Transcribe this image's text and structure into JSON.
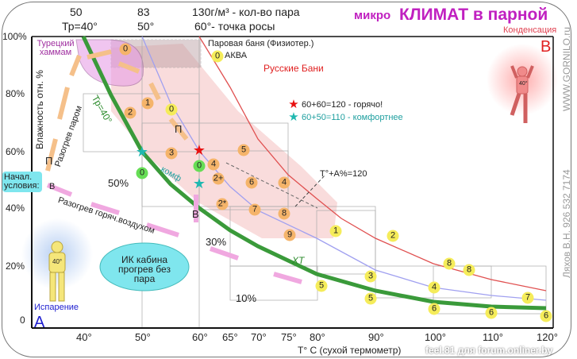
{
  "title_small": "микро",
  "title_big": "КЛИМАТ в парной",
  "condensation": "Конденсация",
  "letter_b": "B",
  "letter_a": "A",
  "evaporation": "Испарение",
  "top_labels": {
    "v50": "50",
    "tr40": "Тр=40°",
    "v83": "83",
    "d50": "50°",
    "amount": "130г/м³ - кол-во пара",
    "dew": "60°- точка росы"
  },
  "y_axis": {
    "label": "Влажность отн. %",
    "ticks": [
      "100%",
      "80%",
      "60%",
      "40%",
      "20%",
      "0"
    ]
  },
  "x_axis": {
    "label": "T° C (сухой термометр)",
    "ticks": [
      "40°",
      "50°",
      "60°",
      "65°",
      "70°",
      "75°",
      "80°",
      "90°",
      "100°",
      "110°",
      "120°"
    ]
  },
  "regions": {
    "hammam": "Турецкий хаммам",
    "steam_bath": "Паровая баня (Физиотер.)",
    "aqua": "АКВА",
    "russian": "Русские  Бани",
    "ir": "ИК кабина прогрев без пара"
  },
  "legend": {
    "hot": "60+60=120 - горячо!",
    "comfort": "60+50=110 - комфортнее",
    "hot_color": "#e81010",
    "comfort_color": "#20b8b0"
  },
  "annotations": {
    "formula": "T°+A%=120",
    "start": "Начал. условия:",
    "steam_heat": "Разогрев паром",
    "air_heat": "Разогрев горяч.воздухом",
    "tr_curve": "Тр=40°",
    "komf": "комф",
    "xt": "ХТ",
    "p1": "П",
    "p2": "П",
    "b1": "В",
    "b2": "В",
    "h50": "50%",
    "h30": "30%",
    "h10": "10%",
    "body_temp": "40°"
  },
  "side_text": {
    "site": "WWW.GORNILO.ru",
    "author": "Ляхов В.Н.   926 532 7174"
  },
  "watermark": "feel.81 для forum.onliner.by",
  "markers": {
    "orange": [
      "0",
      "1",
      "2",
      "3",
      "4",
      "2+",
      "5",
      "6",
      "4",
      "2*",
      "7",
      "8",
      "9"
    ],
    "yellow": [
      "0",
      "1",
      "2",
      "8",
      "8",
      "3",
      "4",
      "5",
      "5",
      "6",
      "6",
      "7",
      "6"
    ],
    "green": [
      "0",
      "0"
    ]
  }
}
